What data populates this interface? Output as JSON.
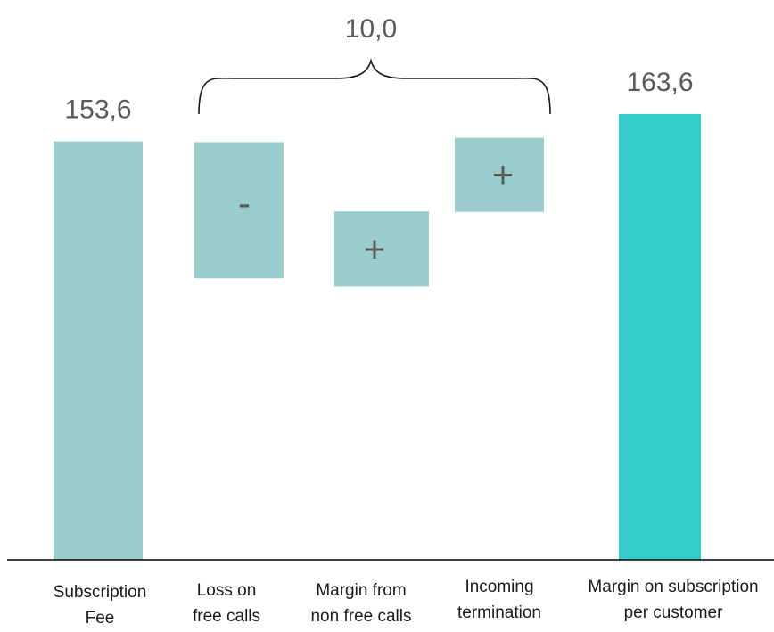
{
  "chart_data": {
    "type": "bar",
    "subtype": "waterfall",
    "categories": [
      [
        "Subscription",
        "Fee"
      ],
      [
        "Loss on",
        "free calls"
      ],
      [
        "Margin from",
        "non free calls"
      ],
      [
        "Incoming",
        "termination"
      ],
      [
        "Margin on subscription",
        "per customer"
      ]
    ],
    "bars": [
      {
        "kind": "total",
        "start": 0,
        "end": 153.6,
        "label": "153,6",
        "sign": ""
      },
      {
        "kind": "delta",
        "start": 153.3,
        "end": 103.3,
        "label": "",
        "sign": "-"
      },
      {
        "kind": "delta",
        "start": 100.3,
        "end": 127.9,
        "label": "",
        "sign": "+"
      },
      {
        "kind": "delta",
        "start": 127.7,
        "end": 154.9,
        "label": "",
        "sign": "+"
      },
      {
        "kind": "total",
        "start": 0,
        "end": 163.6,
        "label": "163,6",
        "sign": ""
      }
    ],
    "bracket": {
      "from_bar": 1,
      "to_bar": 3,
      "label": "10,0"
    },
    "ylim": [
      0,
      163.6
    ],
    "grid": false,
    "legend": "none",
    "colors": {
      "total": "#99cccc",
      "delta": "#99cccc",
      "final": "#33cccc",
      "text": "#595959",
      "axis": "#000000"
    }
  }
}
